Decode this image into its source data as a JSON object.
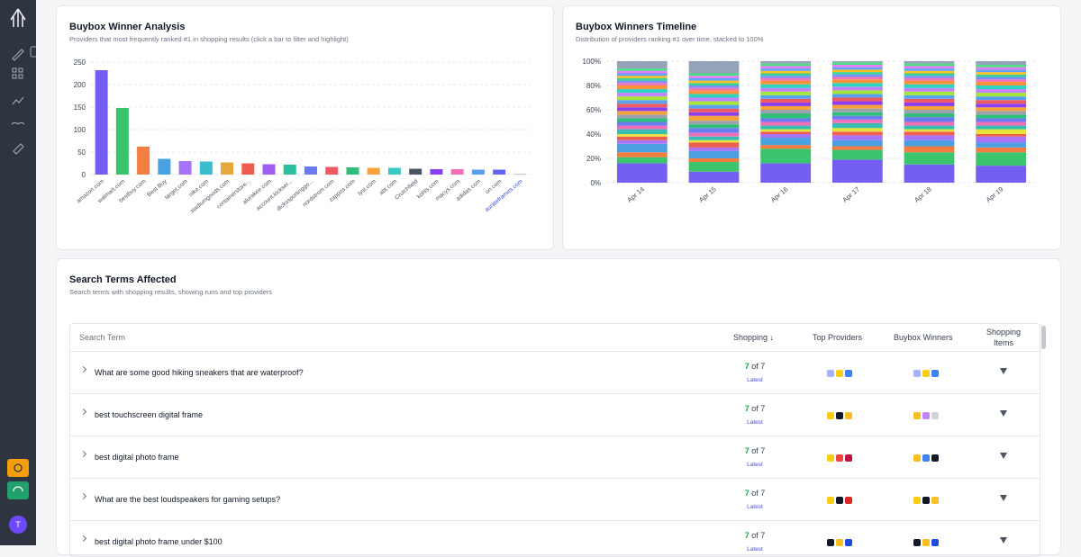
{
  "sidebar": {
    "avatar": "T"
  },
  "chart_data": [
    {
      "type": "bar",
      "title": "Buybox Winner Analysis",
      "subtitle": "Providers that most frequently ranked #1 in shopping results (click a bar to filter and highlight)",
      "categories": [
        "amazon.com",
        "walmart.com",
        "bestbuy.com",
        "Best Buy",
        "target.com",
        "nike.com",
        "stadiumgoods.com",
        "containerstore...",
        "alurakee.com",
        "account.kickser...",
        "dickssportinggo...",
        "nordstrom.com",
        "zappos.com",
        "lyst.com",
        "abt.com",
        "Crutchfield",
        "kohls.com",
        "macys.com",
        "adidas.com",
        "on.com",
        "aurateframes.com"
      ],
      "values": [
        232,
        148,
        62,
        35,
        30,
        29,
        27,
        25,
        23,
        22,
        18,
        17,
        16,
        15,
        15,
        13,
        12,
        12,
        11,
        11,
        2
      ],
      "colors": [
        "#7360f2",
        "#3cc46d",
        "#f47d41",
        "#4aa0e0",
        "#a774f7",
        "#3bbccf",
        "#e5a83a",
        "#ee5d52",
        "#a05ff0",
        "#2dbf9d",
        "#6b7cf2",
        "#ee5a63",
        "#2fbf7a",
        "#f5a33a",
        "#3cc9c3",
        "#4b5563",
        "#8a40f0",
        "#f070b8",
        "#5aa0ee",
        "#6366f1",
        "#c4c4c4"
      ],
      "ylim": [
        0,
        250
      ],
      "yticks": [
        0,
        50,
        100,
        150,
        200,
        250
      ],
      "grid": true
    },
    {
      "type": "stacked_bar",
      "title": "Buybox Winners Timeline",
      "subtitle": "Distribution of providers ranking #1 over time, stacked to 100%",
      "categories": [
        "Apr 14",
        "Apr 15",
        "Apr 16",
        "Apr 17",
        "Apr 18",
        "Apr 19"
      ],
      "series": [
        {
          "color": "#7360f2",
          "values": [
            16,
            9,
            16,
            19,
            15,
            14
          ]
        },
        {
          "color": "#3cc46d",
          "values": [
            5,
            8,
            12,
            8,
            10,
            11
          ]
        },
        {
          "color": "#f47d41",
          "values": [
            4,
            3,
            3,
            3,
            5,
            4
          ]
        },
        {
          "color": "#4aa0e0",
          "values": [
            7,
            6,
            6,
            5,
            5,
            4
          ]
        },
        {
          "color": "#a774f7",
          "values": [
            3,
            3,
            3,
            4,
            4,
            5
          ]
        },
        {
          "color": "#ee5d52",
          "values": [
            3,
            4,
            2,
            3,
            3,
            2
          ]
        },
        {
          "color": "#e5e33a",
          "values": [
            2,
            2,
            2,
            3,
            2,
            4
          ]
        },
        {
          "color": "#38bdb5",
          "values": [
            4,
            3,
            3,
            4,
            3,
            3
          ]
        },
        {
          "color": "#f070b8",
          "values": [
            3,
            3,
            3,
            3,
            3,
            3
          ]
        },
        {
          "color": "#6b7cf2",
          "values": [
            3,
            4,
            3,
            3,
            4,
            3
          ]
        },
        {
          "color": "#2fbf7a",
          "values": [
            3,
            3,
            4,
            3,
            3,
            3
          ]
        },
        {
          "color": "#9ca3af",
          "values": [
            3,
            3,
            3,
            3,
            3,
            3
          ]
        },
        {
          "color": "#f5a33a",
          "values": [
            3,
            4,
            3,
            3,
            3,
            3
          ]
        },
        {
          "color": "#8a40f0",
          "values": [
            3,
            3,
            3,
            3,
            3,
            3
          ]
        },
        {
          "color": "#ee5a63",
          "values": [
            3,
            3,
            3,
            3,
            3,
            3
          ]
        },
        {
          "color": "#5aa0ee",
          "values": [
            3,
            3,
            3,
            3,
            3,
            3
          ]
        },
        {
          "color": "#a3e635",
          "values": [
            3,
            3,
            3,
            3,
            3,
            3
          ]
        },
        {
          "color": "#c084fc",
          "values": [
            3,
            3,
            3,
            3,
            3,
            3
          ]
        },
        {
          "color": "#2dd4bf",
          "values": [
            3,
            3,
            3,
            3,
            3,
            3
          ]
        },
        {
          "color": "#fb923c",
          "values": [
            3,
            3,
            3,
            3,
            3,
            3
          ]
        },
        {
          "color": "#f472b6",
          "values": [
            2,
            2,
            2,
            2,
            2,
            2
          ]
        },
        {
          "color": "#818cf8",
          "values": [
            2,
            2,
            2,
            2,
            2,
            2
          ]
        },
        {
          "color": "#34d399",
          "values": [
            2,
            2,
            2,
            2,
            2,
            2
          ]
        },
        {
          "color": "#fbbf24",
          "values": [
            2,
            2,
            2,
            2,
            2,
            2
          ]
        },
        {
          "color": "#60a5fa",
          "values": [
            2,
            2,
            2,
            2,
            2,
            2
          ]
        },
        {
          "color": "#e879f9",
          "values": [
            2,
            2,
            2,
            2,
            2,
            2
          ]
        },
        {
          "color": "#4ade80",
          "values": [
            2,
            2,
            2,
            2,
            2,
            2
          ]
        },
        {
          "color": "#94a3b8",
          "values": [
            6,
            10,
            2,
            1,
            2,
            3
          ]
        }
      ],
      "ylim": [
        0,
        100
      ],
      "yticks": [
        {
          "value": 0,
          "label": "0%"
        },
        {
          "value": 20,
          "label": "20%"
        },
        {
          "value": 40,
          "label": "40%"
        },
        {
          "value": 60,
          "label": "60%"
        },
        {
          "value": 80,
          "label": "80%"
        },
        {
          "value": 100,
          "label": "100%"
        }
      ],
      "grid": true
    }
  ],
  "search_terms": {
    "title": "Search Terms Affected",
    "subtitle": "Search terms with shopping results, showing runs and top providers",
    "columns": [
      "Search Term",
      "Shopping ↓",
      "Top Providers",
      "Buybox Winners",
      "Shopping Items"
    ],
    "rows": [
      {
        "term": "What are some good hiking sneakers that are waterproof?",
        "count": "7",
        "total": "of 7",
        "status": "Latest"
      },
      {
        "term": "best touchscreen digital frame",
        "count": "7",
        "total": "of 7",
        "status": "Latest"
      },
      {
        "term": "best digital photo frame",
        "count": "7",
        "total": "of 7",
        "status": "Latest"
      },
      {
        "term": "What are the best loudspeakers for gaming setups?",
        "count": "7",
        "total": "of 7",
        "status": "Latest"
      },
      {
        "term": "best digital photo frame under $100",
        "count": "7",
        "total": "of 7",
        "status": "Latest"
      }
    ]
  }
}
